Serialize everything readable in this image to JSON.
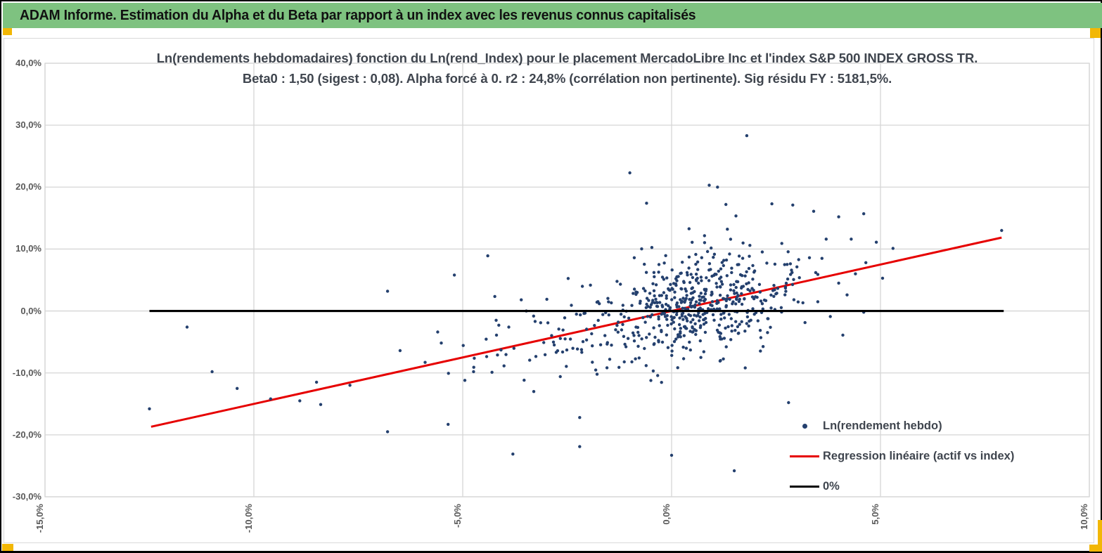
{
  "header": {
    "title": "ADAM Informe. Estimation du Alpha et du Beta par rapport à un index avec les revenus connus capitalisés"
  },
  "colors": {
    "header_green": "#7EC280",
    "gold": "#F2B705",
    "grid": "#D6D6D6",
    "chart_border": "#D9D9D9",
    "marker_navy": "#24406E",
    "regression_red": "#E60000",
    "zero_black": "#000000",
    "title_text": "#3F454E",
    "tick_text": "#595959"
  },
  "chart_data": {
    "type": "scatter",
    "title_line1": "Ln(rendements hebdomadaires) fonction du Ln(rend_Index) pour le placement MercadoLibre Inc et l'index S&P 500 INDEX GROSS TR.",
    "title_line2": "Beta0 : 1,50 (sigest : 0,08). Alpha forcé à 0. r2 : 24,8% (corrélation non pertinente). Sig résidu FY : 5181,5%.",
    "stats": {
      "beta0": "1,50",
      "sigest": "0,08",
      "alpha": "forcé à 0",
      "r2": "24,8%",
      "sig_residu_fy": "5181,5%"
    },
    "xlim": [
      -15,
      10
    ],
    "ylim": [
      -30,
      40
    ],
    "grid": true,
    "legend_position": "bottom-right-inside",
    "x_ticks": [
      {
        "label": "-15,0%",
        "value": -15
      },
      {
        "label": "-10,0%",
        "value": -10
      },
      {
        "label": "-5,0%",
        "value": -5
      },
      {
        "label": "0,0%",
        "value": 0
      },
      {
        "label": "5,0%",
        "value": 5
      },
      {
        "label": "10,0%",
        "value": 10
      }
    ],
    "y_ticks": [
      {
        "label": "40,0%",
        "value": 40
      },
      {
        "label": "30,0%",
        "value": 30
      },
      {
        "label": "20,0%",
        "value": 20
      },
      {
        "label": "10,0%",
        "value": 10
      },
      {
        "label": "0,0%",
        "value": 0
      },
      {
        "label": "-10,0%",
        "value": -10
      },
      {
        "label": "-20,0%",
        "value": -20
      },
      {
        "label": "-30,0%",
        "value": -30
      }
    ],
    "legend": [
      {
        "label": "Ln(rendement hebdo)",
        "marker": "point",
        "color": "#24406E"
      },
      {
        "label": "Regression linéaire (actif vs index)",
        "marker": "line",
        "color": "#E60000"
      },
      {
        "label": "0%",
        "marker": "line",
        "color": "#000000"
      }
    ],
    "regression": {
      "slope": 1.5,
      "intercept": 0,
      "x_start": -12.46,
      "x_end": 7.9,
      "width": 3
    },
    "zero_line": {
      "y": 0,
      "x_start": -12.5,
      "x_end": 7.95,
      "width": 3.2
    },
    "scatter": {
      "marker_radius": 2.2,
      "clouds": [
        {
          "seed": 12345,
          "n": 540,
          "x_mean": 0.55,
          "x_sd": 1.15,
          "x_min": -2.9,
          "x_max": 3.3,
          "beta": 1.5,
          "resid_sd": 4.3,
          "y_min": -14.8,
          "y_max": 15.8
        },
        {
          "seed": 99,
          "n": 60,
          "x_mean": -2.7,
          "x_sd": 1.2,
          "x_min": -5.6,
          "x_max": -1.3,
          "beta": 1.5,
          "resid_sd": 4.0,
          "y_min": -13.5,
          "y_max": 9.5
        }
      ],
      "outliers": [
        [
          -12.5,
          -15.8
        ],
        [
          -11.6,
          -2.6
        ],
        [
          -11.0,
          -9.8
        ],
        [
          -10.4,
          -12.5
        ],
        [
          -9.6,
          -14.2
        ],
        [
          -8.9,
          -14.5
        ],
        [
          -8.5,
          -11.5
        ],
        [
          -8.4,
          -15.1
        ],
        [
          -7.7,
          -12.0
        ],
        [
          -6.8,
          -19.5
        ],
        [
          -6.8,
          3.2
        ],
        [
          -6.5,
          -6.4
        ],
        [
          -5.9,
          -8.3
        ],
        [
          -5.6,
          -3.4
        ],
        [
          -5.35,
          -18.3
        ],
        [
          -5.2,
          5.8
        ],
        [
          -4.95,
          -11.2
        ],
        [
          -4.4,
          8.9
        ],
        [
          -4.3,
          -9.9
        ],
        [
          -4.2,
          -1.5
        ],
        [
          -3.8,
          -23.1
        ],
        [
          -3.6,
          1.8
        ],
        [
          -3.3,
          -13.0
        ],
        [
          -2.2,
          -21.9
        ],
        [
          -2.2,
          -17.2
        ],
        [
          -1.0,
          22.3
        ],
        [
          -0.6,
          17.4
        ],
        [
          0.0,
          -23.3
        ],
        [
          0.9,
          20.3
        ],
        [
          1.1,
          20.0
        ],
        [
          1.3,
          17.2
        ],
        [
          1.5,
          -25.8
        ],
        [
          1.8,
          28.3
        ],
        [
          2.4,
          17.3
        ],
        [
          2.8,
          -14.8
        ],
        [
          2.9,
          17.1
        ],
        [
          3.3,
          8.6
        ],
        [
          3.4,
          16.1
        ],
        [
          3.45,
          6.2
        ],
        [
          3.5,
          5.9
        ],
        [
          3.5,
          1.5
        ],
        [
          3.6,
          8.5
        ],
        [
          3.7,
          11.6
        ],
        [
          3.8,
          -0.9
        ],
        [
          4.0,
          15.2
        ],
        [
          4.0,
          4.5
        ],
        [
          4.1,
          -3.9
        ],
        [
          4.2,
          2.6
        ],
        [
          4.3,
          11.6
        ],
        [
          4.4,
          6.0
        ],
        [
          4.6,
          15.7
        ],
        [
          4.6,
          -0.2
        ],
        [
          4.65,
          7.8
        ],
        [
          4.9,
          11.1
        ],
        [
          5.05,
          5.3
        ],
        [
          5.3,
          10.1
        ],
        [
          7.9,
          13.0
        ]
      ]
    }
  }
}
